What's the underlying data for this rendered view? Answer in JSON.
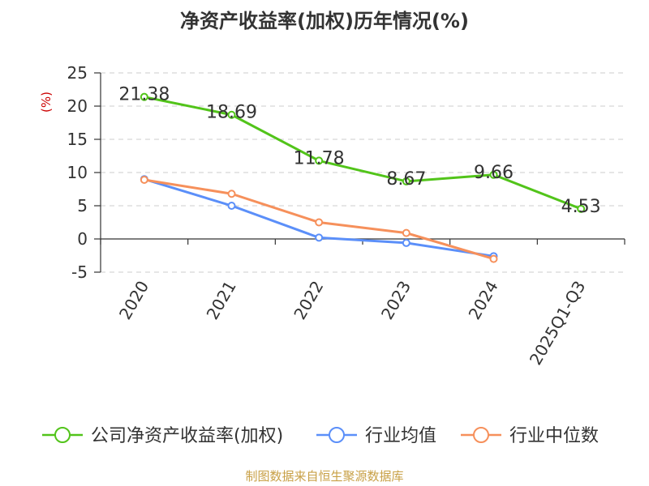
{
  "source_text": "制图数据来自恒生聚源数据库",
  "chart_data": {
    "type": "line",
    "title": "净资产收益率(加权)历年情况(%)",
    "xlabel": "",
    "ylabel": "(%)",
    "categories": [
      "2020",
      "2021",
      "2022",
      "2023",
      "2024",
      "2025Q1-Q3"
    ],
    "ylim": [
      -5,
      25
    ],
    "yticks": [
      -5,
      0,
      5,
      10,
      15,
      20,
      25
    ],
    "grid": "horizontal-dashed",
    "legend_position": "bottom",
    "series": [
      {
        "name": "公司净资产收益率(加权)",
        "color": "#52c41a",
        "values": [
          21.38,
          18.69,
          11.78,
          8.67,
          9.66,
          4.53
        ],
        "show_labels": true
      },
      {
        "name": "行业均值",
        "color": "#5b8ff9",
        "values": [
          9.0,
          5.0,
          0.2,
          -0.6,
          -2.6,
          null
        ],
        "show_labels": false
      },
      {
        "name": "行业中位数",
        "color": "#f6905b",
        "values": [
          8.9,
          6.8,
          2.5,
          0.9,
          -3.0,
          null
        ],
        "show_labels": false
      }
    ],
    "data_labels": [
      "21.38",
      "18.69",
      "11.78",
      "8.67",
      "9.66",
      "4.53"
    ]
  }
}
